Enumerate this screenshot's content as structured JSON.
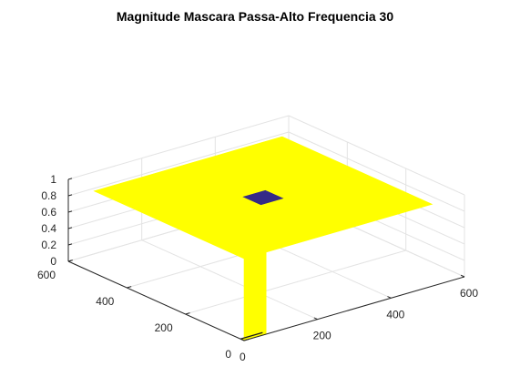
{
  "chart_data": {
    "type": "surface",
    "title": "Magnitude Mascara Passa-Alto Frequencia 30",
    "xlabel": "",
    "ylabel": "",
    "zlabel": "",
    "xlim": [
      0,
      600
    ],
    "ylim": [
      0,
      600
    ],
    "zlim": [
      0,
      1
    ],
    "x_ticks": [
      "0",
      "200",
      "400",
      "600"
    ],
    "y_ticks": [
      "0",
      "200",
      "400",
      "600"
    ],
    "z_ticks": [
      "0",
      "0.2",
      "0.4",
      "0.6",
      "0.8",
      "1"
    ],
    "grid": true,
    "surface": {
      "x_extent": [
        0,
        512
      ],
      "y_extent": [
        0,
        512
      ],
      "outer_value": 1,
      "notch": {
        "x": [
          226,
          286
        ],
        "y": [
          226,
          286
        ],
        "value": 0
      },
      "edge_spike": {
        "x": [
          0,
          60
        ],
        "value": 0
      }
    },
    "colors": {
      "high": "#ffff00",
      "low": "#352a87",
      "axis": "#262626",
      "grid": "#e3e3e3"
    }
  }
}
